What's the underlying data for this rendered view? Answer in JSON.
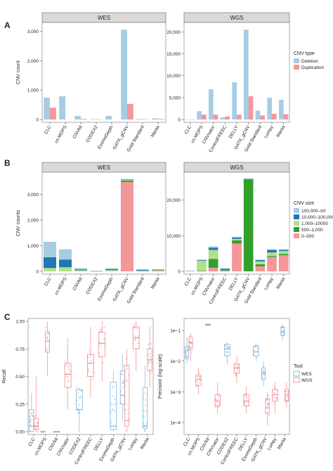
{
  "panels": {
    "a": "A",
    "b": "B",
    "c": "C"
  },
  "colors": {
    "deletion": "#a6cde3",
    "duplication": "#f4969a",
    "wes_box": "#7fb3d9",
    "wgs_box": "#ef8a8f",
    "size_100000_inf": "#a6cde3",
    "size_10000_100000": "#1f77b4",
    "size_1000_10000": "#b2df8a",
    "size_500_1000": "#33a02c",
    "size_0_500": "#f4969a",
    "strip": "#d9d9d9"
  },
  "chart_data": [
    {
      "id": "A-WES",
      "type": "bar",
      "title": "WES",
      "ylabel": "CNV count",
      "ylim": [
        0,
        3200
      ],
      "yticks": [
        {
          "v": 0,
          "t": "0"
        },
        {
          "v": 1000,
          "t": "1,000"
        },
        {
          "v": 2000,
          "t": "2,000"
        },
        {
          "v": 3000,
          "t": "3,000"
        }
      ],
      "categories": [
        "CLC",
        "cn.MOPS",
        "CNVkit",
        "CODEX2",
        "ExomeDepth",
        "GATK_gCNV",
        "Gold Standard",
        "Manta"
      ],
      "series": [
        {
          "name": "Deletion",
          "values": [
            740,
            790,
            120,
            15,
            120,
            3050,
            20,
            40
          ]
        },
        {
          "name": "Duplication",
          "values": [
            400,
            0,
            20,
            5,
            0,
            530,
            10,
            20
          ]
        }
      ]
    },
    {
      "id": "A-WGS",
      "type": "bar",
      "title": "WGS",
      "ylabel": "",
      "ylim": [
        0,
        21500
      ],
      "yticks": [
        {
          "v": 0,
          "t": "0"
        },
        {
          "v": 5000,
          "t": "5,000"
        },
        {
          "v": 10000,
          "t": "10,000"
        },
        {
          "v": 15000,
          "t": "15,000"
        },
        {
          "v": 20000,
          "t": "20,000"
        }
      ],
      "categories": [
        "CLC",
        "cn.MOPS",
        "CNVnator",
        "ControlFREEC",
        "DELLY",
        "GATK_gCNV",
        "Gold Standard",
        "Lumpy",
        "Manta"
      ],
      "series": [
        {
          "name": "Deletion",
          "values": [
            50,
            1900,
            6900,
            500,
            8500,
            20500,
            2000,
            5000,
            4500
          ]
        },
        {
          "name": "Duplication",
          "values": [
            20,
            1100,
            1100,
            700,
            1100,
            5300,
            900,
            1300,
            1200
          ]
        }
      ],
      "legend": {
        "title": "CNV type",
        "entries": [
          "Deletion",
          "Duplication"
        ],
        "placement": "right"
      }
    },
    {
      "id": "B-WES",
      "type": "bar",
      "stacked": true,
      "title": "WES",
      "ylabel": "CNV counts",
      "ylim": [
        0,
        3750
      ],
      "yticks": [
        {
          "v": 0,
          "t": "0"
        },
        {
          "v": 1000,
          "t": "1,000"
        },
        {
          "v": 2000,
          "t": "2,000"
        },
        {
          "v": 3000,
          "t": "3,000"
        }
      ],
      "categories": [
        "CLC",
        "cn.MOPS",
        "CNVkit",
        "CODEX2",
        "ExomeDepth",
        "GATK_gCNV",
        "Gold Standard",
        "Manta"
      ],
      "series": [
        {
          "name": "0–500",
          "values": [
            0,
            0,
            0,
            0,
            0,
            3480,
            5,
            40
          ]
        },
        {
          "name": "500–1,000",
          "values": [
            0,
            0,
            0,
            0,
            0,
            60,
            0,
            5
          ]
        },
        {
          "name": "1,000–10000",
          "values": [
            130,
            160,
            40,
            5,
            50,
            30,
            20,
            20
          ]
        },
        {
          "name": "10,000–100,000",
          "values": [
            420,
            300,
            30,
            5,
            40,
            10,
            40,
            5
          ]
        },
        {
          "name": "100,000–Inf",
          "values": [
            600,
            400,
            60,
            10,
            30,
            20,
            10,
            10
          ]
        }
      ]
    },
    {
      "id": "B-WGS",
      "type": "bar",
      "stacked": true,
      "title": "WGS",
      "ylabel": "",
      "ylim": [
        0,
        27000
      ],
      "yticks": [
        {
          "v": 0,
          "t": "0"
        },
        {
          "v": 10000,
          "t": "10,000"
        },
        {
          "v": 20000,
          "t": "20,000"
        }
      ],
      "categories": [
        "CLC",
        "cn.MOPS",
        "CNVnator",
        "ControlFREEC",
        "DELLY",
        "GATK_gCNV",
        "Gold Standard",
        "Lumpy",
        "Manta"
      ],
      "series": [
        {
          "name": "0–500",
          "values": [
            0,
            100,
            1000,
            0,
            7800,
            0,
            1400,
            4000,
            4500
          ]
        },
        {
          "name": "500–1,000",
          "values": [
            0,
            100,
            2500,
            100,
            900,
            25800,
            600,
            300,
            400
          ]
        },
        {
          "name": "1,000–10000",
          "values": [
            0,
            2800,
            2500,
            200,
            400,
            100,
            800,
            1000,
            800
          ]
        },
        {
          "name": "10,000–100,000",
          "values": [
            100,
            200,
            600,
            400,
            400,
            100,
            400,
            700,
            300
          ]
        },
        {
          "name": "100,000–Inf",
          "values": [
            0,
            100,
            400,
            200,
            200,
            0,
            0,
            200,
            200
          ]
        }
      ],
      "legend": {
        "title": "CNV size",
        "entries": [
          "100,000–Inf",
          "10,000–100,000",
          "1,000–10000",
          "500–1,000",
          "0–500"
        ],
        "placement": "right"
      }
    },
    {
      "id": "C-Recall",
      "type": "box",
      "ylabel": "Recall",
      "ylim": [
        0,
        1.0
      ],
      "yticks": [
        {
          "v": 0,
          "t": "0.00"
        },
        {
          "v": 0.25,
          "t": "0.25"
        },
        {
          "v": 0.5,
          "t": "0.50"
        },
        {
          "v": 0.75,
          "t": "0.75"
        },
        {
          "v": 1.0,
          "t": "1.00"
        }
      ],
      "categories": [
        "CLC",
        "cn.MOPS",
        "CNVkit",
        "CNVnator",
        "CODEX2",
        "ControlFREEC",
        "DELLY",
        "ExomeDepth",
        "GATK_gCNV",
        "Lumpy",
        "Manta"
      ],
      "boxes": [
        {
          "cat": "CLC",
          "group": "WES",
          "q": [
            0,
            0,
            0.05,
            0.2,
            0.35
          ]
        },
        {
          "cat": "CLC",
          "group": "WGS",
          "q": [
            0,
            0.02,
            0.05,
            0.12,
            0.5
          ]
        },
        {
          "cat": "cn.MOPS",
          "group": "WES",
          "q": [
            0,
            0,
            0,
            0,
            0
          ]
        },
        {
          "cat": "cn.MOPS",
          "group": "WGS",
          "q": [
            0.5,
            0.72,
            0.82,
            0.9,
            1.0
          ]
        },
        {
          "cat": "CNVkit",
          "group": "WES",
          "q": [
            0,
            0,
            0,
            0,
            0
          ]
        },
        {
          "cat": "CNVnator",
          "group": "WGS",
          "q": [
            0.2,
            0.4,
            0.52,
            0.62,
            0.85
          ]
        },
        {
          "cat": "CODEX2",
          "group": "WES",
          "q": [
            0,
            0.2,
            0.2,
            0.38,
            0.4
          ]
        },
        {
          "cat": "ControlFREEC",
          "group": "WGS",
          "q": [
            0.3,
            0.5,
            0.62,
            0.7,
            0.95
          ]
        },
        {
          "cat": "DELLY",
          "group": "WGS",
          "q": [
            0.45,
            0.68,
            0.8,
            0.9,
            1.0
          ]
        },
        {
          "cat": "ExomeDepth",
          "group": "WES",
          "q": [
            0,
            0.02,
            0.05,
            0.45,
            0.55
          ]
        },
        {
          "cat": "GATK_gCNV",
          "group": "WES",
          "q": [
            0.1,
            0.25,
            0.33,
            0.55,
            0.7
          ]
        },
        {
          "cat": "GATK_gCNV",
          "group": "WGS",
          "q": [
            0,
            0.05,
            0.1,
            0.6,
            0.75
          ]
        },
        {
          "cat": "Lumpy",
          "group": "WGS",
          "q": [
            0.55,
            0.75,
            0.85,
            0.95,
            1.0
          ]
        },
        {
          "cat": "Manta",
          "group": "WES",
          "q": [
            0,
            0.03,
            0.05,
            0.4,
            0.6
          ]
        },
        {
          "cat": "Manta",
          "group": "WGS",
          "q": [
            0.4,
            0.55,
            0.65,
            0.75,
            0.95
          ]
        }
      ]
    },
    {
      "id": "C-Precision",
      "type": "box",
      "log": true,
      "ylabel": "Precision (log-scale)",
      "ylim": [
        5e-05,
        0.2
      ],
      "yticks": [
        {
          "v": 0.0001,
          "t": "1e−4"
        },
        {
          "v": 0.001,
          "t": "1e−3"
        },
        {
          "v": 0.01,
          "t": "1e−2"
        },
        {
          "v": 0.1,
          "t": "1e−1"
        }
      ],
      "categories": [
        "CLC",
        "cn.MOPS",
        "CNVkit",
        "CNVnator",
        "CODEX2",
        "ControlFREEC",
        "DELLY",
        "ExomeDepth",
        "GATK_gCNV",
        "Lumpy",
        "Manta"
      ],
      "boxes": [
        {
          "cat": "CLC",
          "group": "WES",
          "q": [
            0.008,
            0.012,
            0.014,
            0.03,
            0.06
          ]
        },
        {
          "cat": "CLC",
          "group": "WGS",
          "q": [
            0.01,
            0.025,
            0.04,
            0.06,
            0.08
          ]
        },
        {
          "cat": "cn.MOPS",
          "group": "WGS",
          "q": [
            0.0008,
            0.0016,
            0.0025,
            0.0035,
            0.006
          ]
        },
        {
          "cat": "CNVkit",
          "group": "WES",
          "q": [
            0.15,
            0.15,
            0.15,
            0.16,
            0.16
          ]
        },
        {
          "cat": "CNVnator",
          "group": "WGS",
          "q": [
            0.0002,
            0.00035,
            0.0005,
            0.0008,
            0.002
          ]
        },
        {
          "cat": "CODEX2",
          "group": "WES",
          "q": [
            0.008,
            0.015,
            0.025,
            0.035,
            0.04
          ]
        },
        {
          "cat": "ControlFREEC",
          "group": "WGS",
          "q": [
            0.002,
            0.004,
            0.006,
            0.008,
            0.015
          ]
        },
        {
          "cat": "DELLY",
          "group": "WGS",
          "q": [
            0.0002,
            0.00035,
            0.0005,
            0.0008,
            0.0015
          ]
        },
        {
          "cat": "ExomeDepth",
          "group": "WES",
          "q": [
            0.01,
            0.015,
            0.02,
            0.03,
            0.04
          ]
        },
        {
          "cat": "GATK_gCNV",
          "group": "WES",
          "q": [
            0.0015,
            0.0025,
            0.004,
            0.006,
            0.01
          ]
        },
        {
          "cat": "GATK_gCNV",
          "group": "WGS",
          "q": [
            8e-05,
            0.0002,
            0.0003,
            0.0006,
            0.001
          ]
        },
        {
          "cat": "Lumpy",
          "group": "WGS",
          "q": [
            0.0002,
            0.0005,
            0.0008,
            0.0012,
            0.002
          ]
        },
        {
          "cat": "Manta",
          "group": "WES",
          "q": [
            0.05,
            0.07,
            0.09,
            0.13,
            0.16
          ]
        },
        {
          "cat": "Manta",
          "group": "WGS",
          "q": [
            0.0003,
            0.0005,
            0.0008,
            0.0012,
            0.002
          ]
        }
      ],
      "legend": {
        "title": "Tool",
        "entries": [
          "WES",
          "WGS"
        ],
        "placement": "right"
      }
    }
  ]
}
